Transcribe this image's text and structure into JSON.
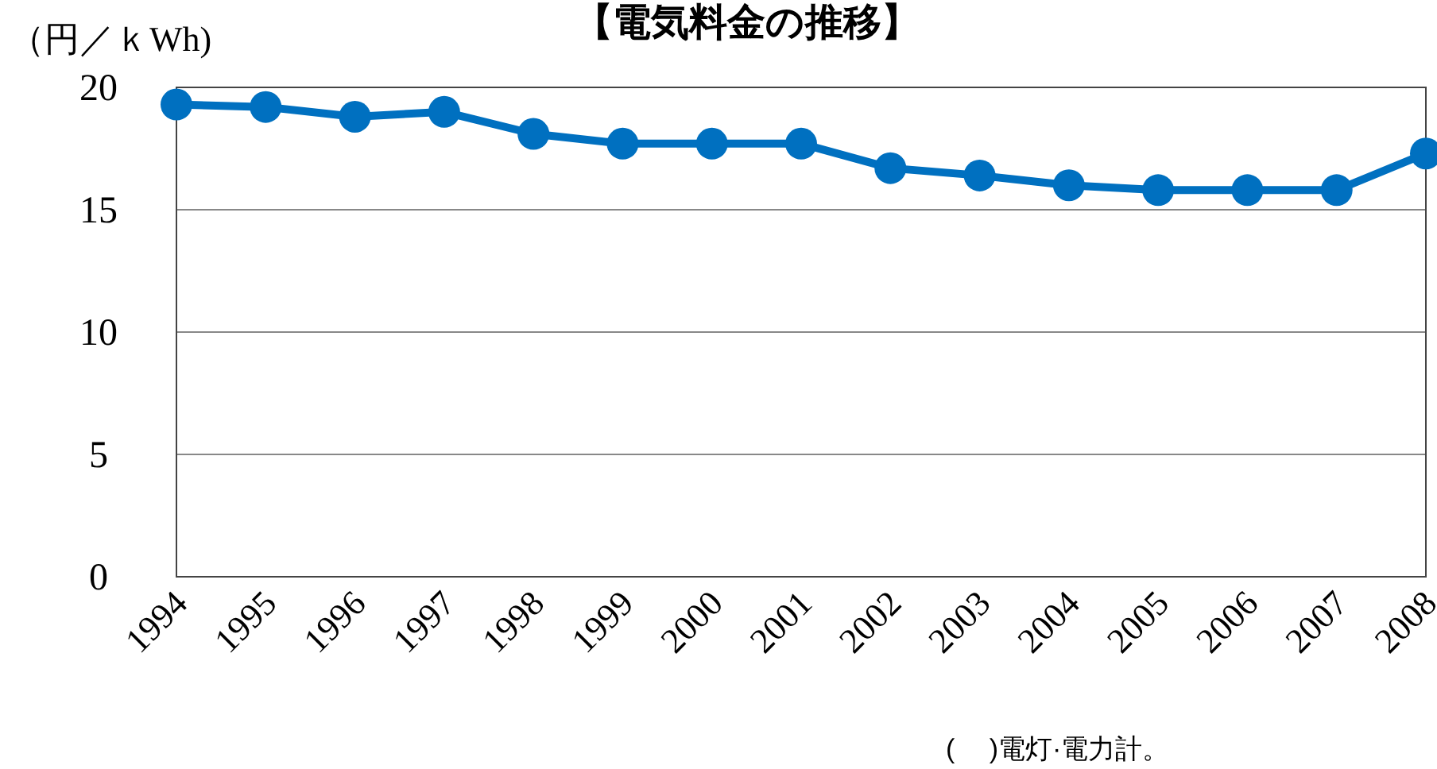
{
  "chart_data": {
    "type": "line",
    "title": "【電気料金の推移】",
    "ylabel": "（円／ｋWh)",
    "categories": [
      "1994",
      "1995",
      "1996",
      "1997",
      "1998",
      "1999",
      "2000",
      "2001",
      "2002",
      "2003",
      "2004",
      "2005",
      "2006",
      "2007",
      "2008"
    ],
    "series": [
      {
        "color": "#0070c0",
        "values": [
          19.3,
          19.2,
          18.8,
          19.0,
          18.1,
          17.7,
          17.7,
          17.7,
          16.7,
          16.4,
          16.0,
          15.8,
          15.8,
          15.8,
          17.3
        ]
      }
    ],
    "ylim": [
      0,
      20
    ],
    "yticks": [
      0,
      5,
      10,
      15,
      20
    ],
    "grid": "y",
    "marker": "circle",
    "line_style": "solid",
    "annotations": [
      "(　 )電灯·電力計。"
    ]
  }
}
